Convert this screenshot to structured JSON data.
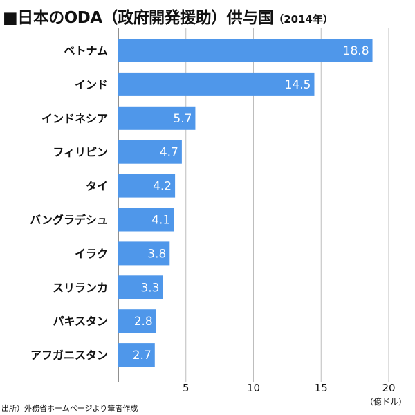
{
  "chart_data": {
    "type": "bar",
    "orientation": "horizontal",
    "title": "■日本のODA（政府開発援助）供与国",
    "title_note": "（2014年）",
    "categories": [
      "ベトナム",
      "インド",
      "インドネシア",
      "フィリピン",
      "タイ",
      "バングラデシュ",
      "イラク",
      "スリランカ",
      "パキスタン",
      "アフガニスタン"
    ],
    "values": [
      18.8,
      14.5,
      5.7,
      4.7,
      4.2,
      4.1,
      3.8,
      3.3,
      2.8,
      2.7
    ],
    "value_labels": [
      "18.8",
      "14.5",
      "5.7",
      "4.7",
      "4.2",
      "4.1",
      "3.8",
      "3.3",
      "2.8",
      "2.7"
    ],
    "xlim": [
      0,
      20
    ],
    "xticks": [
      5,
      10,
      15,
      20
    ],
    "xtick_labels": [
      "5",
      "10",
      "15",
      "20"
    ],
    "unit": "（億ドル）",
    "grid": true,
    "bar_color": "#4f97ea",
    "grid_color": "#bdbdbd",
    "source": "出所）外務省ホームページより筆者作成"
  }
}
